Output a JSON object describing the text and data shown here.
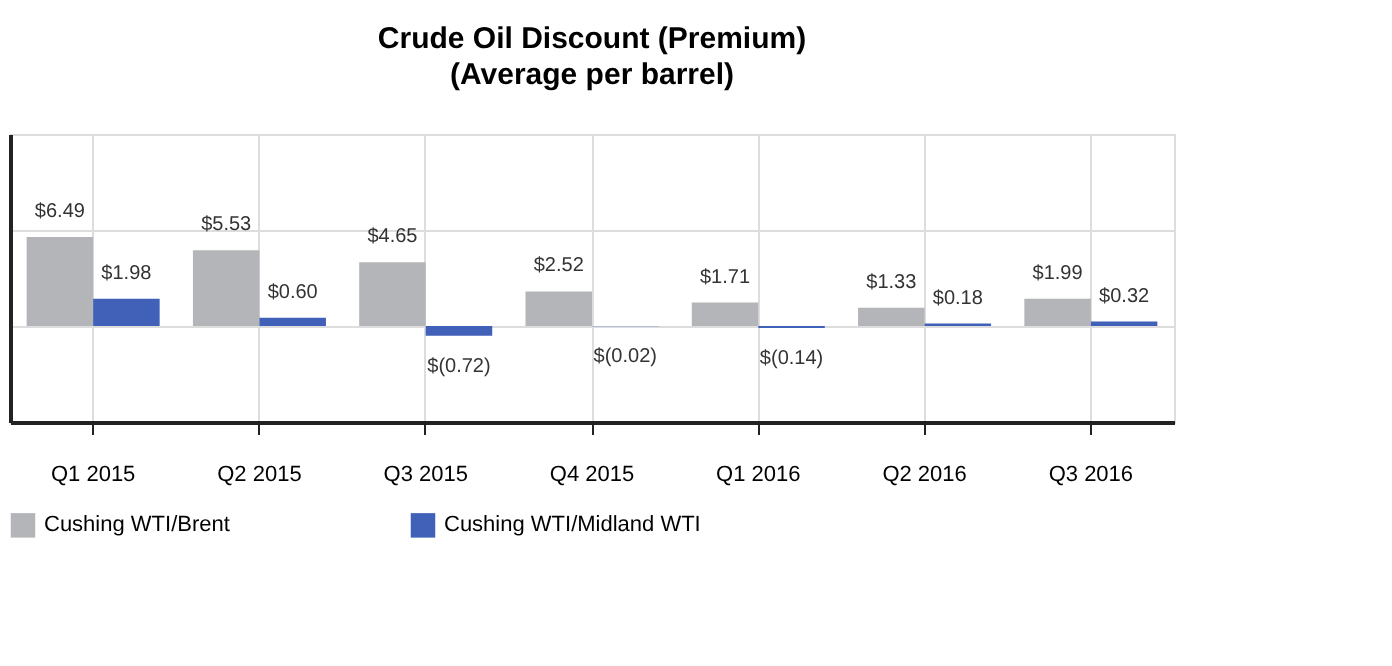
{
  "chart_data": {
    "type": "bar",
    "title": "Crude Oil Discount (Premium)",
    "subtitle": "(Average per barrel)",
    "categories": [
      "Q1 2015",
      "Q2 2015",
      "Q3 2015",
      "Q4 2015",
      "Q1 2016",
      "Q2 2016",
      "Q3 2016"
    ],
    "series": [
      {
        "name": "Cushing WTI/Brent",
        "color": "#b4b5b9",
        "values": [
          6.49,
          5.53,
          4.65,
          2.52,
          1.71,
          1.33,
          1.99
        ],
        "value_labels": [
          "$6.49",
          "$5.53",
          "$4.65",
          "$2.52",
          "$1.71",
          "$1.33",
          "$1.99"
        ]
      },
      {
        "name": "Cushing WTI/Midland WTI",
        "color": "#4061b7",
        "values": [
          1.98,
          0.6,
          -0.72,
          -0.02,
          -0.14,
          0.18,
          0.32
        ],
        "value_labels": [
          "$1.98",
          "$0.60",
          "$(0.72)",
          "$(0.02)",
          "$(0.14)",
          "$0.18",
          "$0.32"
        ]
      }
    ],
    "ylim": [
      -7,
      14
    ],
    "yticks": [
      {
        "value": -7,
        "label": null
      },
      {
        "value": 0,
        "label": null
      },
      {
        "value": 7,
        "label": null
      },
      {
        "value": 14,
        "label": null
      }
    ],
    "tick_labels": "x",
    "grid": true,
    "legend": "bottom"
  }
}
